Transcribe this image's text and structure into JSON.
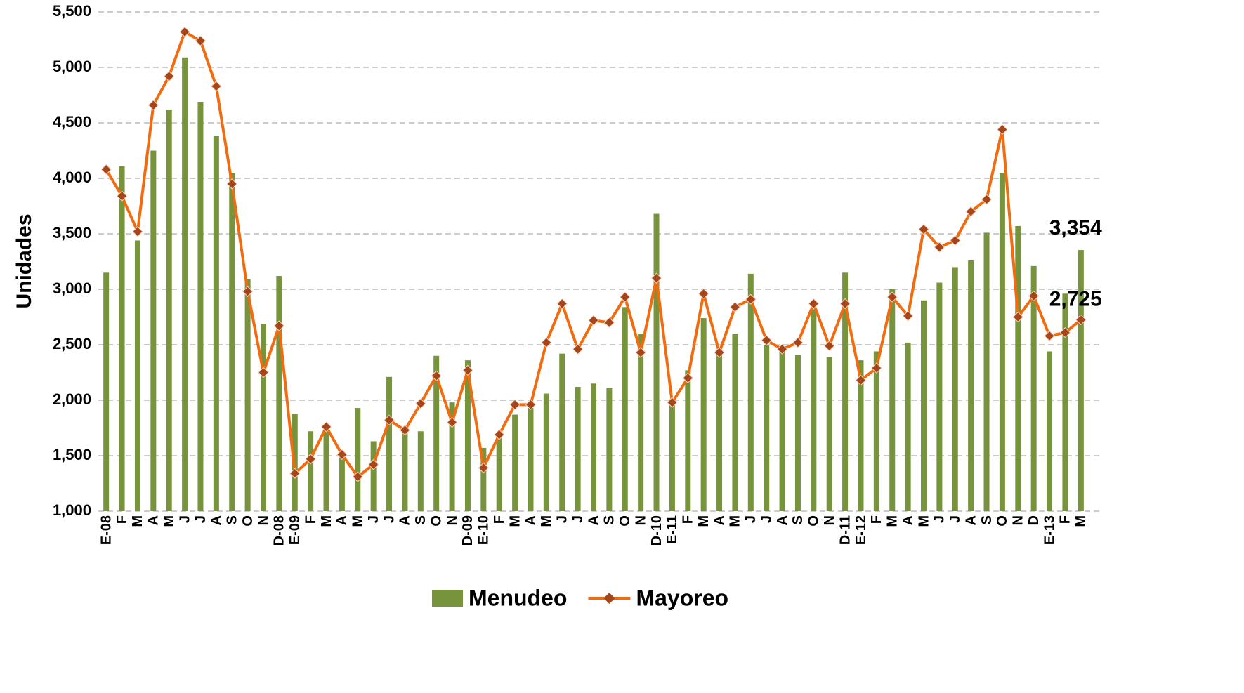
{
  "chart_data": {
    "type": "bar-line",
    "y_label": "Unidades",
    "categories": [
      "E-08",
      "F",
      "M",
      "A",
      "M",
      "J",
      "J",
      "A",
      "S",
      "O",
      "N",
      "D-08",
      "E-09",
      "F",
      "M",
      "A",
      "M",
      "J",
      "J",
      "A",
      "S",
      "O",
      "N",
      "D-09",
      "E-10",
      "F",
      "M",
      "A",
      "M",
      "J",
      "J",
      "A",
      "S",
      "O",
      "N",
      "D-10",
      "E-11",
      "F",
      "M",
      "A",
      "M",
      "J",
      "J",
      "A",
      "S",
      "O",
      "N",
      "D-11",
      "E-12",
      "F",
      "M",
      "A",
      "M",
      "J",
      "J",
      "A",
      "S",
      "O",
      "N",
      "D",
      "E-13",
      "F",
      "M"
    ],
    "series": [
      {
        "name": "Menudeo",
        "kind": "bar",
        "color": "#77933c",
        "values": [
          3150,
          4110,
          3440,
          4250,
          4620,
          5090,
          4690,
          4380,
          4050,
          3090,
          2690,
          3120,
          1880,
          1720,
          1720,
          1500,
          1930,
          1630,
          2210,
          1700,
          1720,
          2400,
          1980,
          2360,
          1570,
          1680,
          1870,
          1930,
          2060,
          2420,
          2120,
          2150,
          2110,
          2840,
          2600,
          3680,
          2010,
          2270,
          2740,
          2420,
          2600,
          3140,
          2500,
          2450,
          2410,
          2820,
          2390,
          3150,
          2360,
          2440,
          3000,
          2520,
          2900,
          3060,
          3200,
          3260,
          3510,
          4050,
          3570,
          3210,
          2440,
          2960,
          3354
        ],
        "value_labels": [
          null,
          null,
          null,
          null,
          null,
          null,
          null,
          null,
          null,
          null,
          null,
          null,
          null,
          null,
          null,
          null,
          null,
          null,
          null,
          null,
          null,
          null,
          null,
          null,
          null,
          null,
          null,
          null,
          null,
          null,
          null,
          null,
          null,
          null,
          null,
          null,
          null,
          null,
          null,
          null,
          null,
          null,
          null,
          null,
          null,
          null,
          null,
          null,
          null,
          null,
          null,
          null,
          null,
          null,
          null,
          null,
          null,
          null,
          null,
          null,
          null,
          null,
          "3,354"
        ]
      },
      {
        "name": "Mayoreo",
        "kind": "line",
        "color": "#f26b0f",
        "marker_color": "#a5461a",
        "values": [
          4080,
          3840,
          3520,
          4660,
          4920,
          5320,
          5240,
          4830,
          3950,
          2980,
          2250,
          2670,
          1340,
          1470,
          1760,
          1510,
          1310,
          1420,
          1820,
          1730,
          1970,
          2220,
          1800,
          2270,
          1390,
          1690,
          1960,
          1960,
          2520,
          2870,
          2460,
          2720,
          2700,
          2930,
          2430,
          3100,
          1980,
          2200,
          2960,
          2430,
          2840,
          2910,
          2540,
          2460,
          2520,
          2870,
          2490,
          2870,
          2180,
          2290,
          2930,
          2760,
          3540,
          3380,
          3440,
          3700,
          3810,
          4440,
          2750,
          2940,
          2580,
          2610,
          2725
        ],
        "value_labels": [
          null,
          null,
          null,
          null,
          null,
          null,
          null,
          null,
          null,
          null,
          null,
          null,
          null,
          null,
          null,
          null,
          null,
          null,
          null,
          null,
          null,
          null,
          null,
          null,
          null,
          null,
          null,
          null,
          null,
          null,
          null,
          null,
          null,
          null,
          null,
          null,
          null,
          null,
          null,
          null,
          null,
          null,
          null,
          null,
          null,
          null,
          null,
          null,
          null,
          null,
          null,
          null,
          null,
          null,
          null,
          null,
          null,
          null,
          null,
          null,
          null,
          null,
          "2,725"
        ]
      }
    ],
    "ylim": [
      1000,
      5500
    ],
    "yticks": [
      {
        "value": 1000,
        "label": "1,000"
      },
      {
        "value": 1500,
        "label": "1,500"
      },
      {
        "value": 2000,
        "label": "2,000"
      },
      {
        "value": 2500,
        "label": "2,500"
      },
      {
        "value": 3000,
        "label": "3,000"
      },
      {
        "value": 3500,
        "label": "3,500"
      },
      {
        "value": 4000,
        "label": "4,000"
      },
      {
        "value": 4500,
        "label": "4,500"
      },
      {
        "value": 5000,
        "label": "5,000"
      },
      {
        "value": 5500,
        "label": "5,500"
      }
    ],
    "grid": true,
    "legend": "bottom"
  }
}
